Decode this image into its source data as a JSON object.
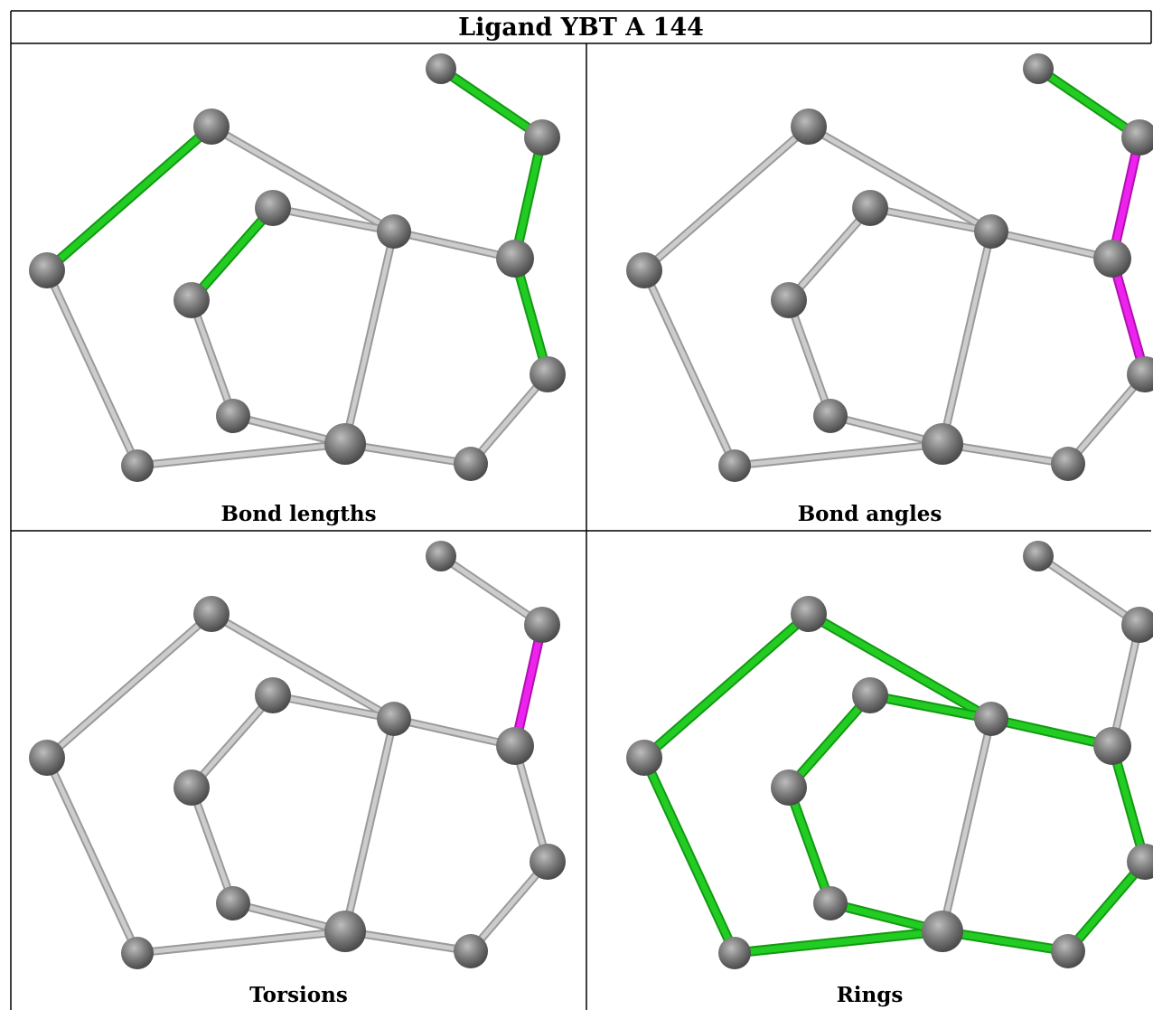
{
  "title": "Ligand YBT A 144",
  "panels": [
    {
      "caption": "Bond lengths",
      "highlight": {
        "green": [
          [
            0,
            1
          ],
          [
            2,
            3
          ],
          [
            10,
            11
          ],
          [
            11,
            12
          ],
          [
            12,
            13
          ]
        ],
        "magenta": []
      }
    },
    {
      "caption": "Bond angles",
      "highlight": {
        "green": [
          [
            10,
            11
          ]
        ],
        "magenta": [
          [
            11,
            12
          ],
          [
            12,
            13
          ]
        ]
      }
    },
    {
      "caption": "Torsions",
      "highlight": {
        "green": [],
        "magenta": [
          [
            11,
            12
          ]
        ]
      }
    },
    {
      "caption": "Rings",
      "highlight": {
        "green": [
          [
            0,
            1
          ],
          [
            0,
            4
          ],
          [
            4,
            5
          ],
          [
            1,
            7
          ],
          [
            3,
            2
          ],
          [
            2,
            7
          ],
          [
            3,
            6
          ],
          [
            6,
            8
          ],
          [
            8,
            5
          ],
          [
            6,
            5
          ],
          [
            7,
            8
          ],
          [
            7,
            12
          ],
          [
            12,
            13
          ],
          [
            13,
            9
          ],
          [
            9,
            8
          ]
        ],
        "magenta": []
      }
    }
  ],
  "colors": {
    "atom": "#7a7a7a",
    "bond": "#cccccc",
    "green": "#22cc22",
    "magenta": "#ee22ee"
  }
}
